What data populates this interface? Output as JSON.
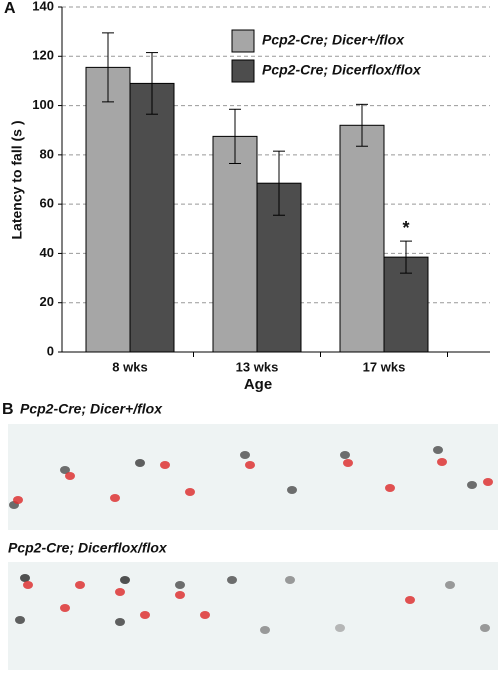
{
  "chart_data": {
    "type": "bar",
    "panel": "A",
    "ylabel": "Latency to fall (s )",
    "xlabel": "Age",
    "categories": [
      "8 wks",
      "13 wks",
      "17 wks"
    ],
    "series": [
      {
        "name": "Pcp2-Cre; Dicer+/flox",
        "color": "#a6a6a6",
        "values": [
          115.5,
          87.5,
          92
        ],
        "errors": [
          14,
          11,
          8.5
        ]
      },
      {
        "name": "Pcp2-Cre; Dicerflox/flox",
        "color": "#4d4d4d",
        "values": [
          109,
          68.5,
          38.5
        ],
        "errors": [
          12.5,
          13,
          6.5
        ]
      }
    ],
    "annotation": "*",
    "ylim": [
      0,
      140
    ],
    "yticks": [
      0,
      20,
      40,
      60,
      80,
      100,
      120,
      140
    ],
    "grid": true
  },
  "panel_b": {
    "label": "B",
    "images": [
      {
        "caption": "Pcp2-Cre; Dicer+/flox"
      },
      {
        "caption": "Pcp2-Cre; Dicerflox/flox"
      }
    ]
  }
}
